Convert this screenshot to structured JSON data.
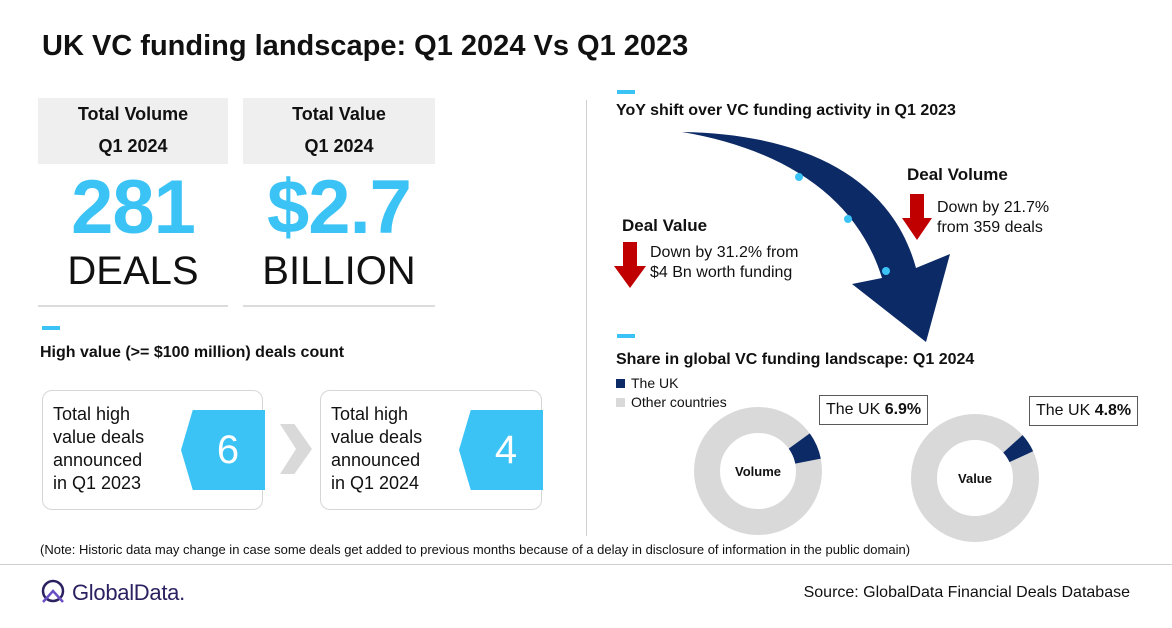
{
  "title": "UK VC funding landscape: Q1 2024 Vs Q1 2023",
  "kpis": [
    {
      "head1": "Total Volume",
      "head2": "Q1 2024",
      "big": "281",
      "unit": "DEALS"
    },
    {
      "head1": "Total Value",
      "head2": "Q1 2024",
      "big": "$2.7",
      "unit": "BILLION"
    }
  ],
  "high_value": {
    "heading": "High value (>= $100 million) deals count",
    "cards": [
      {
        "text_lines": [
          "Total high",
          "value deals",
          "announced",
          "in Q1 2023"
        ],
        "value": "6"
      },
      {
        "text_lines": [
          "Total high",
          "value deals",
          "announced",
          "in Q1 2024"
        ],
        "value": "4"
      }
    ]
  },
  "yoy": {
    "heading": "YoY shift over VC funding activity in Q1 2023",
    "deal_value": {
      "label": "Deal Value",
      "lines": [
        "Down by 31.2% from",
        "$4 Bn worth funding"
      ]
    },
    "deal_volume": {
      "label": "Deal Volume",
      "lines": [
        "Down by 21.7%",
        "from 359 deals"
      ]
    }
  },
  "share": {
    "heading": "Share in global VC funding landscape: Q1 2024",
    "legend": [
      {
        "label": "The UK",
        "color": "#0b2a66"
      },
      {
        "label": "Other countries",
        "color": "#d9d9d9"
      }
    ],
    "donuts": [
      {
        "center_label": "Volume",
        "callout_prefix": "The UK ",
        "callout_value": "6.9%"
      },
      {
        "center_label": "Value",
        "callout_prefix": "The UK ",
        "callout_value": "4.8%"
      }
    ]
  },
  "chart_data": [
    {
      "type": "pie",
      "title": "Volume",
      "categories": [
        "The UK",
        "Other countries"
      ],
      "values": [
        6.9,
        93.1
      ]
    },
    {
      "type": "pie",
      "title": "Value",
      "categories": [
        "The UK",
        "Other countries"
      ],
      "values": [
        4.8,
        95.2
      ]
    }
  ],
  "colors": {
    "accent": "#3cc3f5",
    "navy": "#0b2a66",
    "red": "#c00000",
    "ring": "#d9d9d9"
  },
  "note": "(Note: Historic data may change in case some deals get added to previous months because of a delay in disclosure of information in the public domain)",
  "source": "Source: GlobalData Financial Deals Database",
  "logo_text": "GlobalData."
}
